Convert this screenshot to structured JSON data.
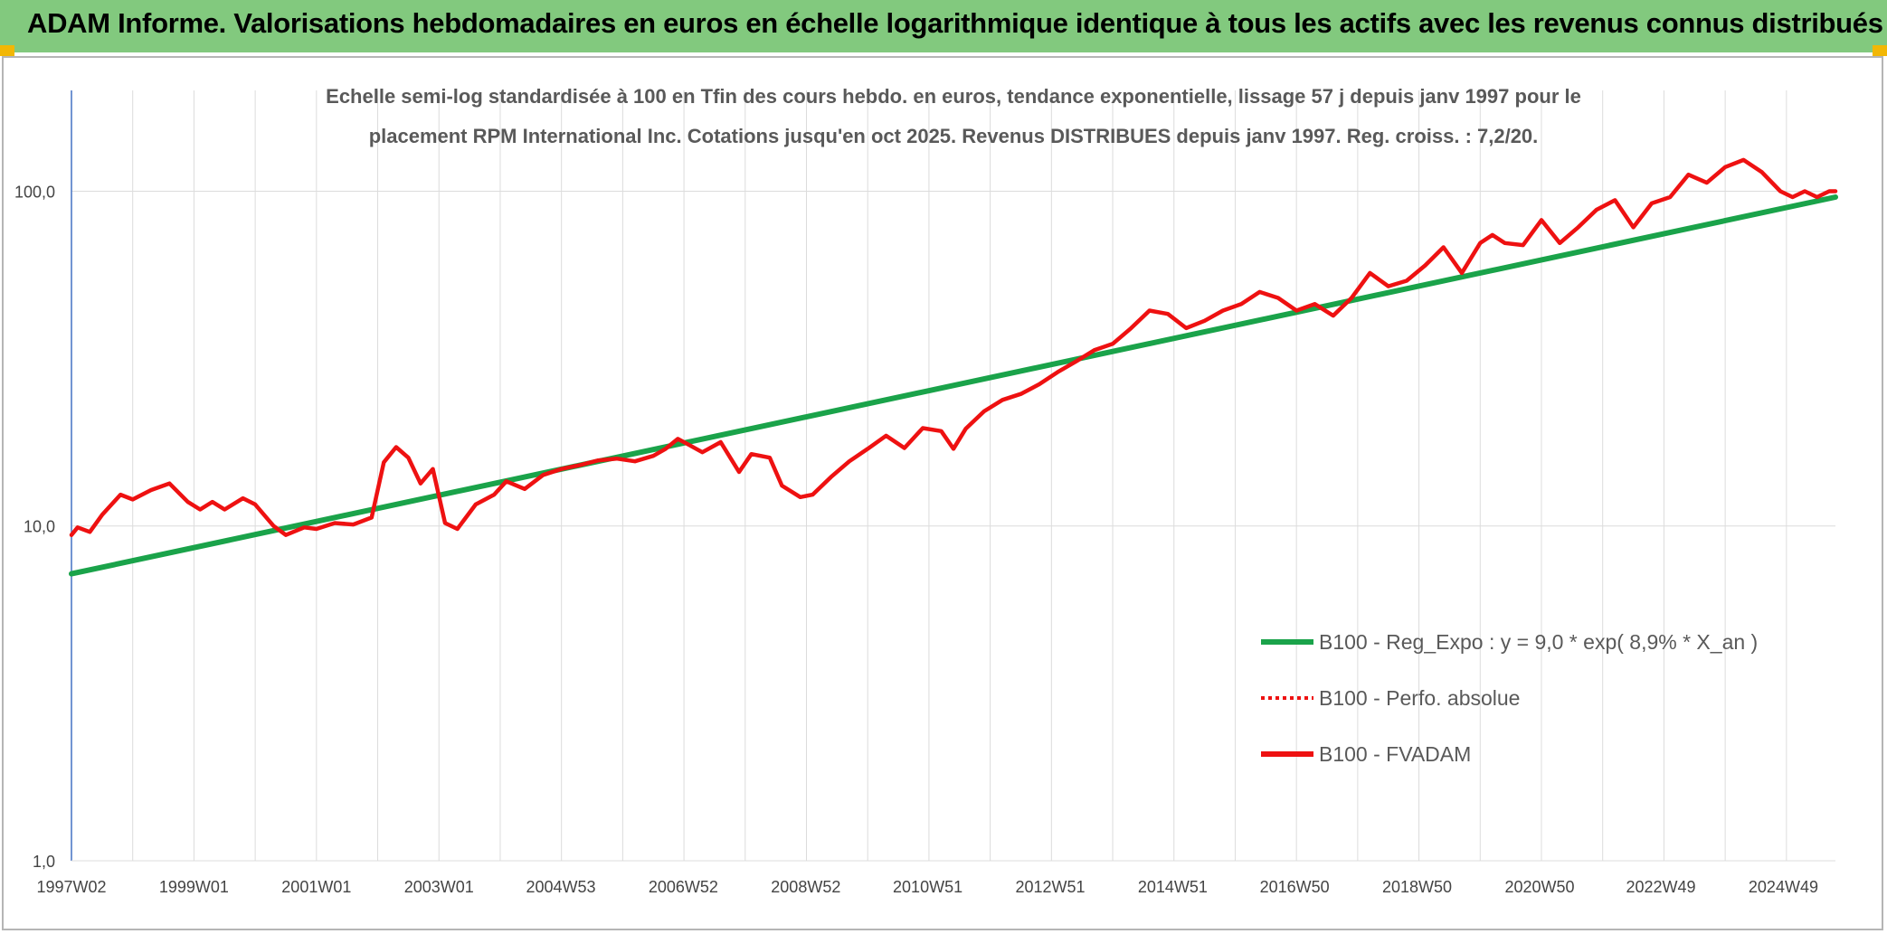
{
  "header": {
    "title": "ADAM Informe. Valorisations hebdomadaires en euros en échelle logarithmique identique à tous les actifs avec les revenus connus distribués"
  },
  "colors": {
    "header_bg": "#82c97e",
    "trend": "#1aa34a",
    "price": "#ee1111",
    "grid": "#dcdcdc",
    "axis": "#4472c4"
  },
  "chart_data": {
    "type": "line",
    "title_lines": [
      "Echelle semi-log standardisée à 100 en Tfin des cours hebdo. en euros, tendance exponentielle, lissage 57 j depuis janv 1997 pour le",
      "placement RPM International Inc. Cotations jusqu'en oct 2025. Revenus DISTRIBUES depuis janv 1997. Reg. croiss. : 7,2/20."
    ],
    "y_scale": "log",
    "ylim": [
      1,
      200
    ],
    "y_ticks": [
      {
        "value": 1,
        "label": "1,0"
      },
      {
        "value": 10,
        "label": "10,0"
      },
      {
        "value": 100,
        "label": "100,0"
      }
    ],
    "xlim": [
      1997.0,
      2025.8
    ],
    "x_ticks": [
      {
        "year": 1997.0,
        "label": "1997W02"
      },
      {
        "year": 1999.0,
        "label": "1999W01"
      },
      {
        "year": 2001.0,
        "label": "2001W01"
      },
      {
        "year": 2003.0,
        "label": "2003W01"
      },
      {
        "year": 2004.99,
        "label": "2004W53"
      },
      {
        "year": 2006.99,
        "label": "2006W52"
      },
      {
        "year": 2008.99,
        "label": "2008W52"
      },
      {
        "year": 2010.98,
        "label": "2010W51"
      },
      {
        "year": 2012.98,
        "label": "2012W51"
      },
      {
        "year": 2014.98,
        "label": "2014W51"
      },
      {
        "year": 2016.97,
        "label": "2016W50"
      },
      {
        "year": 2018.97,
        "label": "2018W50"
      },
      {
        "year": 2020.97,
        "label": "2020W50"
      },
      {
        "year": 2022.95,
        "label": "2022W49"
      },
      {
        "year": 2024.95,
        "label": "2024W49"
      }
    ],
    "grid": true,
    "legend": {
      "position": "right",
      "entries": [
        {
          "name": "B100 - Reg_Expo : y = 9,0 * exp( 8,9% *  X_an )",
          "style": "solid-green"
        },
        {
          "name": "B100 - Perfo. absolue",
          "style": "dotted-red"
        },
        {
          "name": "B100 - FVADAM",
          "style": "solid-red"
        }
      ]
    },
    "series": [
      {
        "name": "B100 - Reg_Expo : y = 9,0 * exp( 8,9% *  X_an )",
        "kind": "trend",
        "x": [
          1997.0,
          2025.8
        ],
        "y": [
          7.2,
          96
        ]
      },
      {
        "name": "B100 - FVADAM",
        "kind": "price",
        "x": [
          1997.0,
          1997.1,
          1997.3,
          1997.5,
          1997.8,
          1998.0,
          1998.3,
          1998.6,
          1998.9,
          1999.1,
          1999.3,
          1999.5,
          1999.8,
          2000.0,
          2000.3,
          2000.5,
          2000.8,
          2001.0,
          2001.3,
          2001.6,
          2001.9,
          2002.1,
          2002.3,
          2002.5,
          2002.7,
          2002.9,
          2003.1,
          2003.3,
          2003.6,
          2003.9,
          2004.1,
          2004.4,
          2004.7,
          2005.0,
          2005.3,
          2005.6,
          2005.9,
          2006.2,
          2006.5,
          2006.7,
          2006.9,
          2007.1,
          2007.3,
          2007.6,
          2007.9,
          2008.1,
          2008.4,
          2008.6,
          2008.9,
          2009.1,
          2009.4,
          2009.7,
          2010.0,
          2010.3,
          2010.6,
          2010.9,
          2011.2,
          2011.4,
          2011.6,
          2011.9,
          2012.2,
          2012.5,
          2012.8,
          2013.1,
          2013.4,
          2013.7,
          2014.0,
          2014.3,
          2014.6,
          2014.9,
          2015.2,
          2015.5,
          2015.8,
          2016.1,
          2016.4,
          2016.7,
          2017.0,
          2017.3,
          2017.6,
          2017.9,
          2018.2,
          2018.5,
          2018.8,
          2019.1,
          2019.4,
          2019.7,
          2020.0,
          2020.2,
          2020.4,
          2020.7,
          2021.0,
          2021.3,
          2021.6,
          2021.9,
          2022.2,
          2022.5,
          2022.8,
          2023.1,
          2023.4,
          2023.7,
          2024.0,
          2024.3,
          2024.6,
          2024.9,
          2025.1,
          2025.3,
          2025.5,
          2025.7,
          2025.8
        ],
        "y": [
          9.4,
          9.9,
          9.6,
          10.8,
          12.4,
          12.0,
          12.8,
          13.4,
          11.8,
          11.2,
          11.8,
          11.2,
          12.1,
          11.6,
          10.0,
          9.4,
          9.9,
          9.8,
          10.2,
          10.1,
          10.6,
          15.5,
          17.2,
          16.0,
          13.4,
          14.8,
          10.2,
          9.8,
          11.6,
          12.4,
          13.6,
          12.9,
          14.2,
          14.8,
          15.2,
          15.7,
          15.9,
          15.6,
          16.2,
          17.0,
          18.2,
          17.4,
          16.6,
          17.8,
          14.5,
          16.4,
          16.0,
          13.2,
          12.2,
          12.4,
          14.0,
          15.6,
          17.0,
          18.6,
          17.1,
          19.6,
          19.2,
          17.0,
          19.5,
          22.0,
          23.8,
          24.8,
          26.5,
          28.8,
          31.0,
          33.5,
          35.0,
          39.0,
          44.0,
          43.0,
          39.0,
          41.0,
          44.0,
          46.0,
          50.0,
          48.0,
          44.0,
          46.0,
          42.5,
          48.0,
          57.0,
          52.0,
          54.0,
          60.0,
          68.0,
          57.0,
          70.0,
          74.0,
          70.0,
          69.0,
          82.0,
          70.0,
          78.0,
          88.0,
          94.0,
          78.0,
          92.0,
          96.0,
          112.0,
          106.0,
          118.0,
          124.0,
          114.0,
          100.0,
          96.0,
          100.0,
          96.0,
          100.0,
          100.0
        ]
      }
    ]
  }
}
